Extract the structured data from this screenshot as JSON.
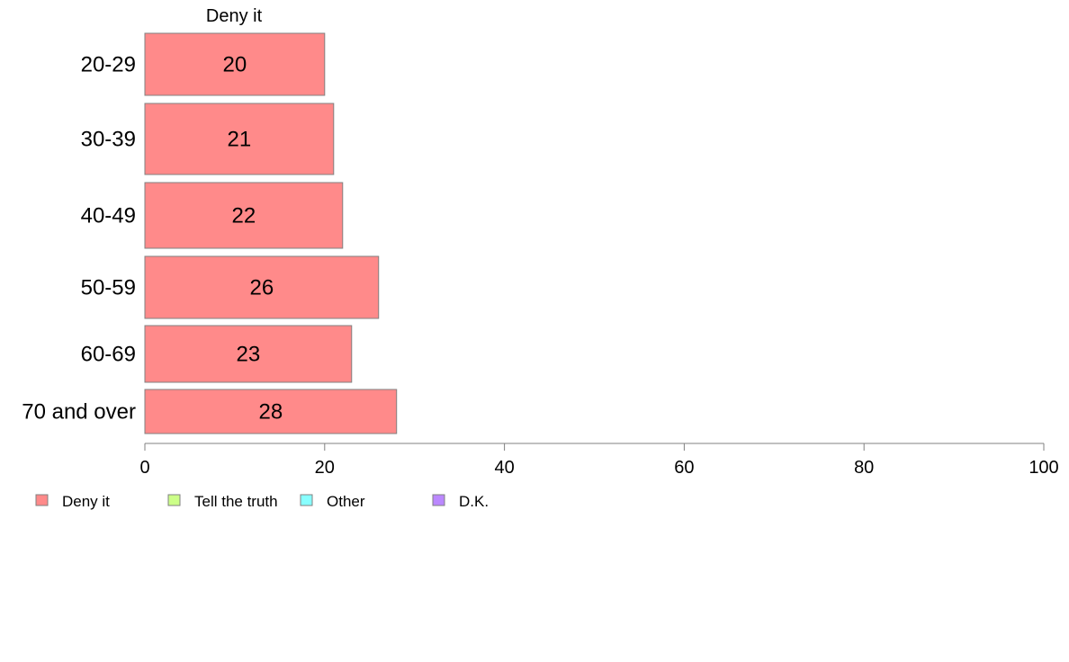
{
  "chart_data": {
    "type": "bar",
    "orientation": "horizontal",
    "title": "",
    "xlabel": "",
    "ylabel": "",
    "xlim": [
      0,
      100
    ],
    "x_ticks": [
      0,
      20,
      40,
      60,
      80,
      100
    ],
    "grid": false,
    "categories": [
      "20-29",
      "30-39",
      "40-49",
      "50-59",
      "60-69",
      "70 and over"
    ],
    "series": [
      {
        "name": "Deny it",
        "color": "#ff8a8a",
        "values": [
          20,
          21,
          22,
          26,
          23,
          28
        ]
      }
    ],
    "legend": {
      "placement": "bottom-left",
      "items": [
        {
          "label": "Deny it",
          "color": "#ff8a8a"
        },
        {
          "label": "Tell the truth",
          "color": "#ccff88"
        },
        {
          "label": "Other",
          "color": "#88ffff"
        },
        {
          "label": "D.K.",
          "color": "#bb88ff"
        }
      ]
    }
  }
}
